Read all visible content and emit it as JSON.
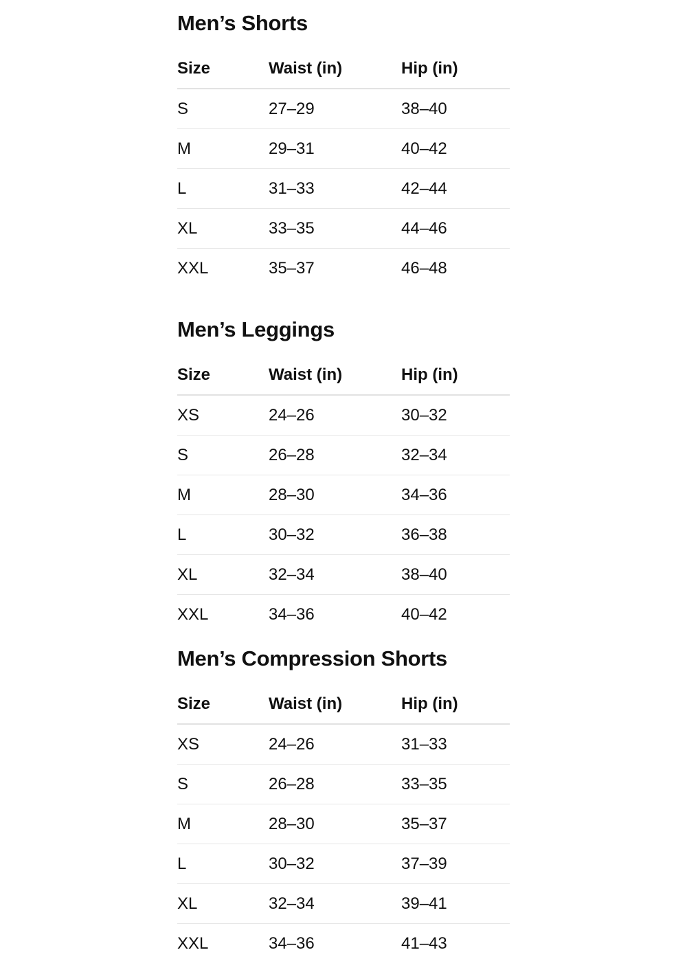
{
  "columns": [
    "Size",
    "Waist (in)",
    "Hip (in)"
  ],
  "sections": [
    {
      "title": "Men’s Shorts",
      "rows": [
        [
          "S",
          "27–29",
          "38–40"
        ],
        [
          "M",
          "29–31",
          "40–42"
        ],
        [
          "L",
          "31–33",
          "42–44"
        ],
        [
          "XL",
          "33–35",
          "44–46"
        ],
        [
          "XXL",
          "35–37",
          "46–48"
        ]
      ]
    },
    {
      "title": "Men’s Leggings",
      "rows": [
        [
          "XS",
          "24–26",
          "30–32"
        ],
        [
          "S",
          "26–28",
          "32–34"
        ],
        [
          "M",
          "28–30",
          "34–36"
        ],
        [
          "L",
          "30–32",
          "36–38"
        ],
        [
          "XL",
          "32–34",
          "38–40"
        ],
        [
          "XXL",
          "34–36",
          "40–42"
        ]
      ]
    },
    {
      "title": "Men’s Compression Shorts",
      "rows": [
        [
          "XS",
          "24–26",
          "31–33"
        ],
        [
          "S",
          "26–28",
          "33–35"
        ],
        [
          "M",
          "28–30",
          "35–37"
        ],
        [
          "L",
          "30–32",
          "37–39"
        ],
        [
          "XL",
          "32–34",
          "39–41"
        ],
        [
          "XXL",
          "34–36",
          "41–43"
        ]
      ]
    }
  ]
}
